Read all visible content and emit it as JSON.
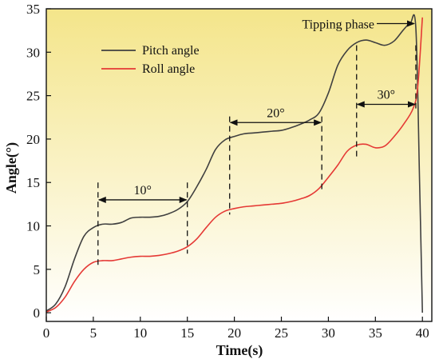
{
  "chart_data": {
    "type": "line",
    "title": "",
    "xlabel": "Time(s)",
    "ylabel": "Angle(°)",
    "xlim": [
      0,
      41
    ],
    "ylim": [
      -1,
      35
    ],
    "xticks": [
      0,
      5,
      10,
      15,
      20,
      25,
      30,
      35,
      40
    ],
    "yticks": [
      0,
      5,
      10,
      15,
      20,
      25,
      30,
      35
    ],
    "grid": false,
    "legend": "top-left",
    "background": {
      "top": "#f4e58a",
      "bottom": "#ffffff"
    },
    "series": [
      {
        "name": "Pitch angle",
        "color": "#404040",
        "x": [
          0,
          1,
          2,
          3,
          4,
          5,
          6,
          7,
          8,
          9,
          10,
          11,
          12,
          13,
          14,
          15,
          16,
          17,
          18,
          19,
          20,
          21,
          22,
          23,
          24,
          25,
          26,
          27,
          28,
          29,
          30,
          31,
          32,
          33,
          34,
          35,
          36,
          37,
          38,
          38.7,
          39.3,
          39.7,
          40
        ],
        "y": [
          0.2,
          1.0,
          3.0,
          6.2,
          8.8,
          9.8,
          10.2,
          10.2,
          10.4,
          10.9,
          11.0,
          11.0,
          11.1,
          11.4,
          11.9,
          12.8,
          14.5,
          16.5,
          18.8,
          19.9,
          20.3,
          20.6,
          20.7,
          20.8,
          20.9,
          21.0,
          21.3,
          21.7,
          22.2,
          23.0,
          25.3,
          28.5,
          30.2,
          31.1,
          31.4,
          31.1,
          30.8,
          31.3,
          32.6,
          33.3,
          32.8,
          15.0,
          0.0
        ]
      },
      {
        "name": "Roll angle",
        "color": "#e53935",
        "x": [
          0,
          1,
          2,
          3,
          4,
          5,
          6,
          7,
          8,
          9,
          10,
          11,
          12,
          13,
          14,
          15,
          16,
          17,
          18,
          19,
          20,
          21,
          22,
          23,
          24,
          25,
          26,
          27,
          28,
          29,
          30,
          31,
          32,
          33,
          34,
          35,
          36,
          37,
          38,
          39,
          39.5,
          40
        ],
        "y": [
          0.1,
          0.6,
          1.8,
          3.6,
          5.0,
          5.8,
          6.0,
          6.0,
          6.2,
          6.4,
          6.5,
          6.5,
          6.6,
          6.8,
          7.1,
          7.6,
          8.5,
          9.8,
          11.0,
          11.7,
          12.0,
          12.2,
          12.3,
          12.4,
          12.5,
          12.6,
          12.8,
          13.1,
          13.5,
          14.3,
          15.6,
          17.0,
          18.6,
          19.3,
          19.4,
          19.0,
          19.2,
          20.3,
          21.7,
          23.5,
          26.0,
          34.0
        ]
      }
    ],
    "annotations": [
      {
        "text": "10°",
        "x_from": 5.5,
        "x_to": 15,
        "arrow_y": 13,
        "guide_y": [
          [
            5.5,
            15
          ],
          [
            15,
            15
          ]
        ],
        "guide_bottom": [
          5.5,
          15
        ]
      },
      {
        "text": "20°",
        "x_from": 19.5,
        "x_to": 29.3,
        "arrow_y": 21.9,
        "guide_bottom": [
          19.5,
          29.3
        ]
      },
      {
        "text": "30°",
        "x_from": 33,
        "x_to": 39.3,
        "arrow_y": 24,
        "guide_bottom": [
          33,
          39.3
        ]
      },
      {
        "text": "Tipping phase",
        "arrow_to_x": 39.3,
        "arrow_to_y": 33.3
      }
    ]
  }
}
